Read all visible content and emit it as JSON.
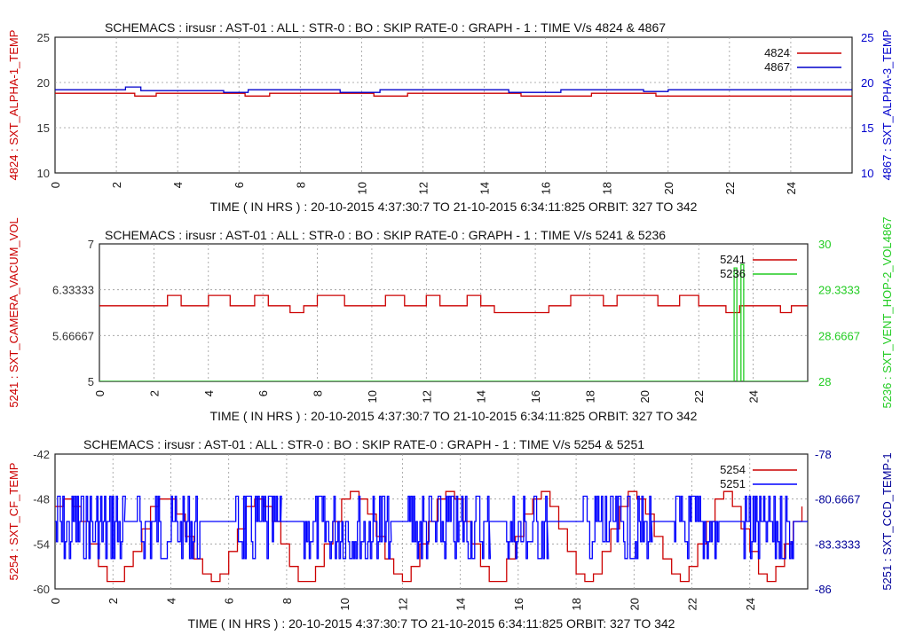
{
  "chart_data": [
    {
      "type": "line",
      "title": "SCHEMACS : irsusr : AST-01 : ALL : STR-0 : BO : SKIP RATE-0 : GRAPH - 1 :  TIME V/s 4824 & 4867",
      "xlabel": "TIME ( IN HRS ) : 20-10-2015 4:37:30:7 TO 21-10-2015 6:34:11:825  ORBIT: 327 TO 342",
      "ylabel": "4824 : SXT_ALPHA-1_TEMP",
      "y2label": "4867 : SXT_ALPHA-3_TEMP",
      "xlim": [
        0,
        26
      ],
      "ylim": [
        10,
        25
      ],
      "y2lim": [
        10,
        25
      ],
      "x_ticks": [
        "0",
        "2",
        "4",
        "6",
        "8",
        "10",
        "12",
        "14",
        "16",
        "18",
        "20",
        "22",
        "24"
      ],
      "y_ticks": [
        "25",
        "20",
        "15",
        "10"
      ],
      "y2_ticks": [
        "25",
        "20",
        "15",
        "10"
      ],
      "colors": {
        "left": "#cc0000",
        "right": "#0000cc",
        "s1": "#cc0000",
        "s2": "#0000cc"
      },
      "legend_position": "top-right",
      "series": [
        {
          "name": "4824",
          "axis": "left",
          "x": [
            0,
            2.6,
            2.6,
            3.3,
            3.3,
            6.2,
            6.2,
            7.0,
            7.0,
            10.4,
            10.4,
            11.5,
            11.5,
            15.2,
            15.2,
            17.5,
            17.5,
            19.6,
            19.6,
            26
          ],
          "y": [
            18.8,
            18.8,
            18.5,
            18.5,
            18.8,
            18.8,
            18.5,
            18.5,
            18.8,
            18.8,
            18.5,
            18.5,
            18.8,
            18.8,
            18.5,
            18.5,
            18.8,
            18.8,
            18.5,
            18.5
          ]
        },
        {
          "name": "4867",
          "axis": "right",
          "x": [
            0,
            2.3,
            2.3,
            2.8,
            2.8,
            5.5,
            5.5,
            6.3,
            6.3,
            9.3,
            9.3,
            10.6,
            10.6,
            14.8,
            14.8,
            16.5,
            16.5,
            19.2,
            19.2,
            20.0,
            20.0,
            26
          ],
          "y": [
            19.2,
            19.2,
            19.5,
            19.5,
            19.1,
            19.1,
            18.9,
            18.9,
            19.2,
            19.2,
            18.9,
            18.9,
            19.2,
            19.2,
            18.9,
            18.9,
            19.2,
            19.2,
            19.0,
            19.0,
            19.2,
            19.2
          ]
        }
      ]
    },
    {
      "type": "line",
      "title": "SCHEMACS : irsusr : AST-01 : ALL : STR-0 : BO : SKIP RATE-0 : GRAPH - 1 :  TIME V/s 5241 & 5236",
      "xlabel": "TIME ( IN HRS ) : 20-10-2015 4:37:30:7 TO 21-10-2015 6:34:11:825  ORBIT: 327 TO 342",
      "ylabel": "5241 : SXT_CAMERA_VACUM_VOL",
      "y2label": "5236 : SXT_VENT_HOP-2_VOL4867",
      "xlim": [
        0,
        26
      ],
      "ylim": [
        5,
        7
      ],
      "y2lim": [
        28,
        30
      ],
      "x_ticks": [
        "0",
        "2",
        "4",
        "6",
        "8",
        "10",
        "12",
        "14",
        "16",
        "18",
        "20",
        "22",
        "24"
      ],
      "y_ticks": [
        "7",
        "6.33333",
        "5.66667",
        "5"
      ],
      "y2_ticks": [
        "30",
        "29.3333",
        "28.6667",
        "28"
      ],
      "colors": {
        "left": "#cc0000",
        "right": "#22cc22",
        "s1": "#cc0000",
        "s2": "#22cc22"
      },
      "legend_position": "top-right",
      "series": [
        {
          "name": "5241",
          "axis": "left",
          "x": [
            0,
            2.5,
            2.5,
            3.0,
            3.0,
            4.0,
            4.0,
            4.8,
            4.8,
            5.7,
            5.7,
            6.2,
            6.2,
            7.0,
            7.0,
            7.5,
            7.5,
            8.0,
            8.0,
            9.0,
            9.0,
            10.5,
            10.5,
            11.2,
            11.2,
            12.0,
            12.0,
            12.5,
            12.5,
            13.5,
            13.5,
            14.0,
            14.0,
            14.5,
            14.5,
            16.5,
            16.5,
            17.3,
            17.3,
            18.5,
            18.5,
            19.0,
            19.0,
            20.5,
            20.5,
            21.3,
            21.3,
            22.0,
            22.0,
            23.0,
            23.0,
            23.5,
            23.5,
            25.0,
            25.0,
            25.4,
            25.4,
            26
          ],
          "y": [
            6.1,
            6.1,
            6.25,
            6.25,
            6.1,
            6.1,
            6.25,
            6.25,
            6.1,
            6.1,
            6.25,
            6.25,
            6.1,
            6.1,
            6.0,
            6.0,
            6.1,
            6.1,
            6.25,
            6.25,
            6.1,
            6.1,
            6.25,
            6.25,
            6.1,
            6.1,
            6.25,
            6.25,
            6.1,
            6.1,
            6.25,
            6.25,
            6.1,
            6.1,
            6.0,
            6.0,
            6.1,
            6.1,
            6.25,
            6.25,
            6.1,
            6.1,
            6.25,
            6.25,
            6.1,
            6.1,
            6.25,
            6.25,
            6.1,
            6.1,
            6.0,
            6.0,
            6.1,
            6.1,
            6.0,
            6.0,
            6.1,
            6.1
          ]
        },
        {
          "name": "5236",
          "axis": "right",
          "x": [
            0,
            23.3,
            23.3,
            23.4,
            23.4,
            23.55,
            23.55,
            23.65,
            23.65,
            26
          ],
          "y": [
            28,
            28,
            29.65,
            29.65,
            28,
            28,
            29.7,
            29.7,
            28,
            28
          ]
        }
      ]
    },
    {
      "type": "line",
      "title": "SCHEMACS : irsusr : AST-01 : ALL : STR-0 : BO : SKIP RATE-0 : GRAPH - 1 :  TIME V/s 5254 & 5251",
      "xlabel": "TIME ( IN HRS ) : 20-10-2015 4:37:30:7 TO 21-10-2015 6:34:11:825  ORBIT: 327 TO 342",
      "ylabel": "5254 : SXT_CF_TEMP",
      "y2label": "5251 : SXT_CCD_TEMP-1",
      "xlim": [
        0,
        26
      ],
      "ylim": [
        -60,
        -42
      ],
      "y2lim": [
        -86,
        -78
      ],
      "x_ticks": [
        "0",
        "2",
        "4",
        "6",
        "8",
        "10",
        "12",
        "14",
        "16",
        "18",
        "20",
        "22",
        "24"
      ],
      "y_ticks": [
        "-42",
        "-48",
        "-54",
        "-60"
      ],
      "y2_ticks": [
        "-78",
        "-80.6667",
        "-83.3333",
        "-86"
      ],
      "colors": {
        "left": "#cc0000",
        "right": "#000099",
        "s1": "#cc0000",
        "s2": "#0000ff"
      },
      "legend_position": "top-right",
      "series": [
        {
          "name": "5254",
          "axis": "left",
          "x": [
            0,
            0.3,
            0.6,
            0.9,
            1.2,
            1.5,
            1.8,
            2.1,
            2.4,
            2.7,
            3.0,
            3.3,
            3.6,
            3.9,
            4.2,
            4.5,
            4.8,
            5.1,
            5.4,
            5.7,
            6.0,
            6.3,
            6.6,
            6.9,
            7.2,
            7.5,
            7.8,
            8.1,
            8.4,
            8.7,
            9.0,
            9.3,
            9.6,
            9.9,
            10.2,
            10.5,
            10.8,
            11.1,
            11.4,
            11.7,
            12.0,
            12.3,
            12.6,
            12.9,
            13.2,
            13.5,
            13.8,
            14.1,
            14.4,
            14.7,
            15.0,
            15.3,
            15.6,
            15.9,
            16.2,
            16.5,
            16.8,
            17.1,
            17.4,
            17.7,
            18.0,
            18.3,
            18.6,
            18.9,
            19.2,
            19.5,
            19.8,
            20.1,
            20.4,
            20.7,
            21.0,
            21.3,
            21.6,
            21.9,
            22.2,
            22.5,
            22.8,
            23.1,
            23.4,
            23.7,
            24.0,
            24.3,
            24.6,
            24.9,
            25.2,
            25.5,
            25.8
          ],
          "y": [
            -49,
            -48,
            -49,
            -51,
            -54,
            -57,
            -59,
            -59,
            -57,
            -55,
            -52,
            -49,
            -48,
            -48,
            -50,
            -53,
            -56,
            -58,
            -59,
            -58,
            -55,
            -52,
            -49,
            -48,
            -49,
            -51,
            -54,
            -57,
            -59,
            -59,
            -57,
            -54,
            -51,
            -48,
            -47,
            -48,
            -50,
            -53,
            -56,
            -58,
            -59,
            -57,
            -54,
            -51,
            -48,
            -47,
            -48,
            -51,
            -54,
            -57,
            -59,
            -59,
            -56,
            -53,
            -50,
            -48,
            -47,
            -49,
            -52,
            -55,
            -58,
            -59,
            -58,
            -55,
            -52,
            -49,
            -47,
            -48,
            -50,
            -53,
            -56,
            -58,
            -59,
            -57,
            -54,
            -51,
            -48,
            -47,
            -49,
            -52,
            -55,
            -58,
            -59,
            -57,
            -54,
            -51,
            -49
          ]
        },
        {
          "name": "5251",
          "axis": "right",
          "bursts": [
            [
              0,
              2.4
            ],
            [
              2.8,
              5.0
            ],
            [
              6.2,
              7.8
            ],
            [
              8.6,
              11.6
            ],
            [
              12.2,
              15.0
            ],
            [
              15.6,
              17.0
            ],
            [
              18.2,
              20.6
            ],
            [
              21.4,
              23.0
            ],
            [
              23.8,
              25.6
            ]
          ],
          "base": -82.0,
          "levels": [
            -80.5,
            -82.0,
            -83.2,
            -84.2
          ]
        }
      ]
    }
  ]
}
